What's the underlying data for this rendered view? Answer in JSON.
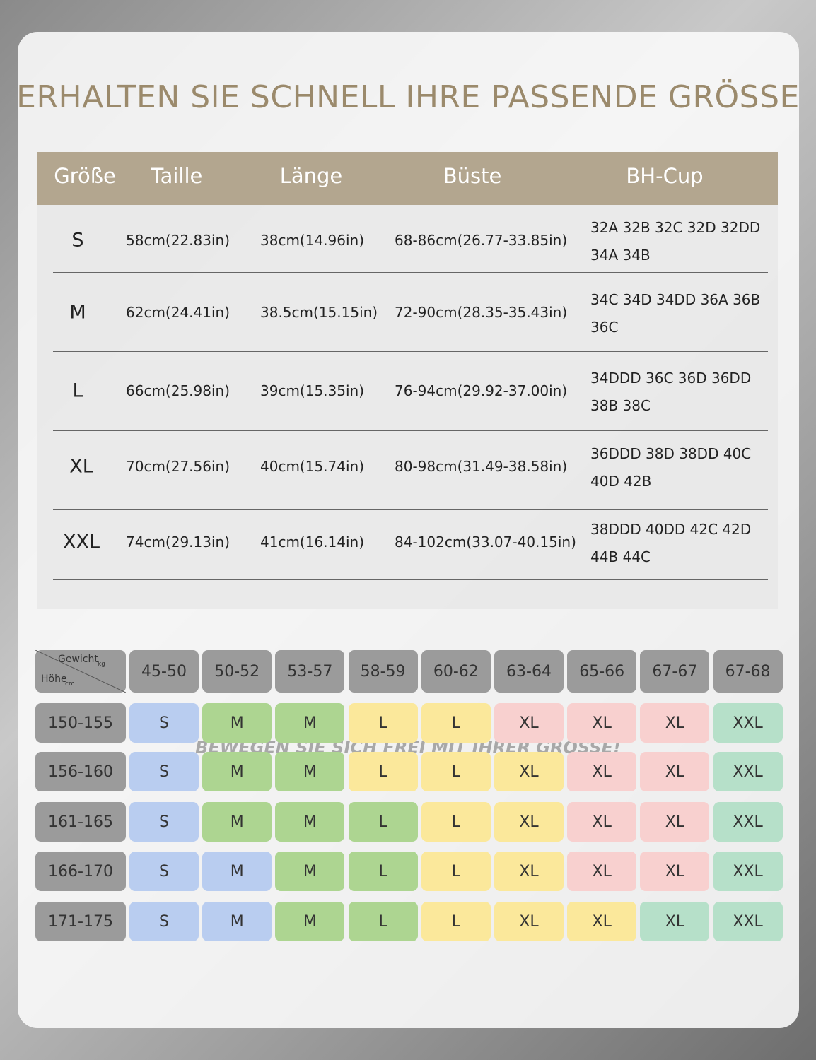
{
  "title": "ERHALTEN SIE SCHNELL IHRE PASSENDE GRÖSSE",
  "size_table": {
    "header": [
      "Größe",
      "Taille",
      "Länge",
      "Büste",
      "BH-Cup"
    ],
    "rows": [
      [
        "S",
        "58cm(22.83in)",
        "38cm(14.96in)",
        "68-86cm(26.77-33.85in)",
        [
          "32A 32B 32C 32D 32DD",
          "34A 34B"
        ]
      ],
      [
        "M",
        "62cm(24.41in)",
        "38.5cm(15.15in)",
        "72-90cm(28.35-35.43in)",
        [
          "34C 34D 34DD 36A 36B",
          "36C"
        ]
      ],
      [
        "L",
        "66cm(25.98in)",
        "39cm(15.35in)",
        "76-94cm(29.92-37.00in)",
        [
          "34DDD 36C 36D 36DD",
          "38B 38C"
        ]
      ],
      [
        "XL",
        "70cm(27.56in)",
        "40cm(15.74in)",
        "80-98cm(31.49-38.58in)",
        [
          "36DDD 38D 38DD 40C",
          "40D 42B"
        ]
      ],
      [
        "XXL",
        "74cm(29.13in)",
        "41cm(16.14in)",
        "84-102cm(33.07-40.15in)",
        [
          "38DDD 40DD 42C 42D",
          "44B 44C"
        ]
      ]
    ]
  },
  "fit_grid": {
    "corner": {
      "top": "Gewicht",
      "top_unit": "kg",
      "left": "Höhe",
      "left_unit": "cm"
    },
    "weights": [
      "45-50",
      "50-52",
      "53-57",
      "58-59",
      "60-62",
      "63-64",
      "65-66",
      "67-67",
      "67-68"
    ],
    "rows": [
      {
        "height": "150-155",
        "cells": [
          {
            "size": "S",
            "color": "#b9cdf0"
          },
          {
            "size": "M",
            "color": "#add591"
          },
          {
            "size": "M",
            "color": "#add591"
          },
          {
            "size": "L",
            "color": "#fbe89b"
          },
          {
            "size": "L",
            "color": "#fbe89b"
          },
          {
            "size": "XL",
            "color": "#f8d0cf"
          },
          {
            "size": "XL",
            "color": "#f8d0cf"
          },
          {
            "size": "XL",
            "color": "#f8d0cf"
          },
          {
            "size": "XXL",
            "color": "#b6e0c9"
          }
        ]
      },
      {
        "height": "156-160",
        "cells": [
          {
            "size": "S",
            "color": "#b9cdf0"
          },
          {
            "size": "M",
            "color": "#add591"
          },
          {
            "size": "M",
            "color": "#add591"
          },
          {
            "size": "L",
            "color": "#fbe89b"
          },
          {
            "size": "L",
            "color": "#fbe89b"
          },
          {
            "size": "XL",
            "color": "#fbe89b"
          },
          {
            "size": "XL",
            "color": "#f8d0cf"
          },
          {
            "size": "XL",
            "color": "#f8d0cf"
          },
          {
            "size": "XXL",
            "color": "#b6e0c9"
          }
        ]
      },
      {
        "height": "161-165",
        "cells": [
          {
            "size": "S",
            "color": "#b9cdf0"
          },
          {
            "size": "M",
            "color": "#add591"
          },
          {
            "size": "M",
            "color": "#add591"
          },
          {
            "size": "L",
            "color": "#add591"
          },
          {
            "size": "L",
            "color": "#fbe89b"
          },
          {
            "size": "XL",
            "color": "#fbe89b"
          },
          {
            "size": "XL",
            "color": "#f8d0cf"
          },
          {
            "size": "XL",
            "color": "#f8d0cf"
          },
          {
            "size": "XXL",
            "color": "#b6e0c9"
          }
        ]
      },
      {
        "height": "166-170",
        "cells": [
          {
            "size": "S",
            "color": "#b9cdf0"
          },
          {
            "size": "M",
            "color": "#b9cdf0"
          },
          {
            "size": "M",
            "color": "#add591"
          },
          {
            "size": "L",
            "color": "#add591"
          },
          {
            "size": "L",
            "color": "#fbe89b"
          },
          {
            "size": "XL",
            "color": "#fbe89b"
          },
          {
            "size": "XL",
            "color": "#f8d0cf"
          },
          {
            "size": "XL",
            "color": "#f8d0cf"
          },
          {
            "size": "XXL",
            "color": "#b6e0c9"
          }
        ]
      },
      {
        "height": "171-175",
        "cells": [
          {
            "size": "S",
            "color": "#b9cdf0"
          },
          {
            "size": "M",
            "color": "#b9cdf0"
          },
          {
            "size": "M",
            "color": "#add591"
          },
          {
            "size": "L",
            "color": "#add591"
          },
          {
            "size": "L",
            "color": "#fbe89b"
          },
          {
            "size": "XL",
            "color": "#fbe89b"
          },
          {
            "size": "XL",
            "color": "#fbe89b"
          },
          {
            "size": "XL",
            "color": "#b6e0c9"
          },
          {
            "size": "XXL",
            "color": "#b6e0c9"
          }
        ]
      }
    ]
  },
  "footer": "BEWEGEN SIE SICH FREI MIT IHRER GRÖSSE!"
}
